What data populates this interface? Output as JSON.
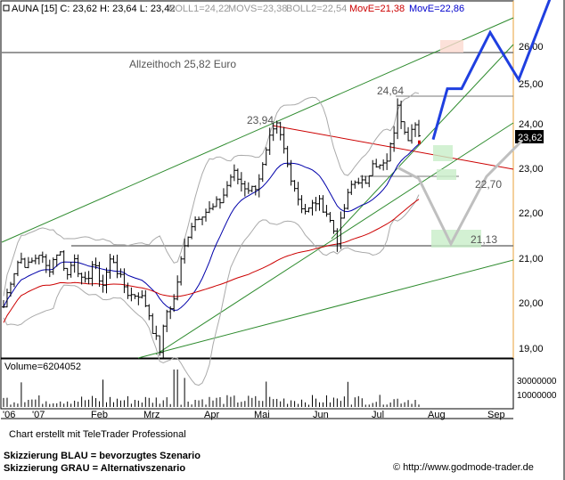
{
  "chart_data": {
    "type": "candlestick",
    "header": {
      "symbol_info": "AUNA [15] C: 23,62 H: 23,64 L: 23,42",
      "boll1": "BOLL1=24,22",
      "movs": "MOVS=23,38",
      "boll2": "BOLL2=22,54",
      "move1": "MovE=21,38",
      "move2": "MovE=22,86",
      "boll_color": "#999999",
      "movs_color": "#999999",
      "move1_color": "#cc0000",
      "move2_color": "#0000cc"
    },
    "y_ticks": [
      "19,00",
      "20,00",
      "21,00",
      "22,00",
      "23,00",
      "24,00",
      "25,00",
      "26,00"
    ],
    "ylim": [
      18.7,
      26.9
    ],
    "x_ticks": [
      "'06",
      "'07",
      "Feb",
      "Mrz",
      "Apr",
      "Mai",
      "Jun",
      "Jul",
      "Aug",
      "Sep"
    ],
    "last_price": "23,62",
    "annotations": {
      "ath": "Allzeithoch  25,82 Euro",
      "high_label": "24,64",
      "mid_label": "23,94",
      "target1": "22,70",
      "target2": "21,13"
    },
    "levels": {
      "ath": 25.82,
      "high": 24.64,
      "support": 21.13,
      "target": 22.7
    },
    "price_series_anchors": [
      [
        0,
        19.9
      ],
      [
        8,
        20.5
      ],
      [
        18,
        21.0
      ],
      [
        28,
        20.8
      ],
      [
        40,
        21.1
      ],
      [
        50,
        20.7
      ],
      [
        62,
        21.2
      ],
      [
        72,
        20.6
      ],
      [
        80,
        21.05
      ],
      [
        90,
        20.3
      ],
      [
        100,
        20.85
      ],
      [
        112,
        20.4
      ],
      [
        122,
        21.05
      ],
      [
        132,
        20.5
      ],
      [
        142,
        20.15
      ],
      [
        152,
        20.2
      ],
      [
        162,
        19.9
      ],
      [
        170,
        19.25
      ],
      [
        176,
        18.95
      ],
      [
        184,
        19.8
      ],
      [
        192,
        20.05
      ],
      [
        200,
        20.9
      ],
      [
        210,
        21.7
      ],
      [
        222,
        22.0
      ],
      [
        234,
        22.05
      ],
      [
        246,
        22.3
      ],
      [
        258,
        22.9
      ],
      [
        270,
        22.6
      ],
      [
        282,
        22.5
      ],
      [
        292,
        23.0
      ],
      [
        300,
        23.6
      ],
      [
        308,
        23.9
      ],
      [
        314,
        23.55
      ],
      [
        320,
        23.05
      ],
      [
        326,
        22.7
      ],
      [
        334,
        22.2
      ],
      [
        342,
        22.0
      ],
      [
        352,
        22.25
      ],
      [
        362,
        22.1
      ],
      [
        370,
        21.7
      ],
      [
        376,
        21.4
      ],
      [
        384,
        22.1
      ],
      [
        392,
        22.6
      ],
      [
        400,
        22.75
      ],
      [
        408,
        22.55
      ],
      [
        416,
        23.2
      ],
      [
        424,
        23.0
      ],
      [
        432,
        23.1
      ],
      [
        438,
        23.6
      ],
      [
        444,
        24.3
      ],
      [
        450,
        24.0
      ],
      [
        456,
        23.7
      ],
      [
        462,
        24.1
      ],
      [
        468,
        23.62
      ]
    ],
    "volume": {
      "label": "Volume=6204052",
      "ticks": [
        "30000000",
        "10000000"
      ],
      "ylim": [
        0,
        42000000
      ]
    },
    "scenario_blue": [
      [
        24.0,
        23.62
      ],
      [
        24.4,
        24.75
      ],
      [
        24.8,
        24.75
      ],
      [
        25.6,
        26.0
      ],
      [
        26.4,
        24.95
      ],
      [
        27.4,
        27.0
      ]
    ],
    "scenario_gray": [
      [
        23.0,
        23.0
      ],
      [
        23.6,
        22.75
      ],
      [
        24.5,
        21.3
      ],
      [
        25.5,
        22.8
      ],
      [
        26.5,
        23.6
      ]
    ]
  },
  "footer": {
    "credit": "Chart erstellt mit TeleTrader Professional",
    "legend_blue": "Skizzierung BLAU = bevorzugtes Szenario",
    "legend_gray": "Skizzierung GRAU = Alternativszenario",
    "copyright_icon": "copyright-icon",
    "url": "http://www.godmode-trader.de"
  }
}
